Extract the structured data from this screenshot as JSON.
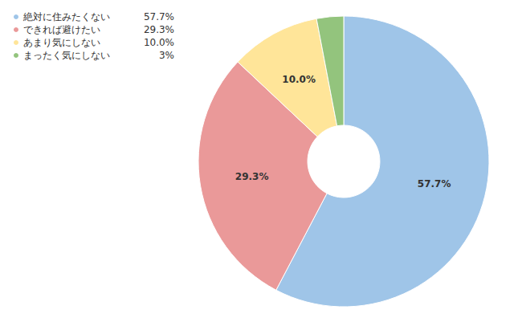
{
  "chart_data": {
    "type": "pie",
    "categories": [
      "絶対に住みたくない",
      "できれば避けたい",
      "あまり気にしない",
      "まったく気にしない"
    ],
    "values": [
      57.7,
      29.3,
      10.0,
      3
    ],
    "value_labels": [
      "57.7%",
      "29.3%",
      "10.0%",
      "3%"
    ],
    "colors": [
      "#9fc5e8",
      "#ea9999",
      "#ffe599",
      "#93c47d"
    ],
    "data_labels": [
      true,
      true,
      true,
      false
    ],
    "legend": "top-left"
  }
}
